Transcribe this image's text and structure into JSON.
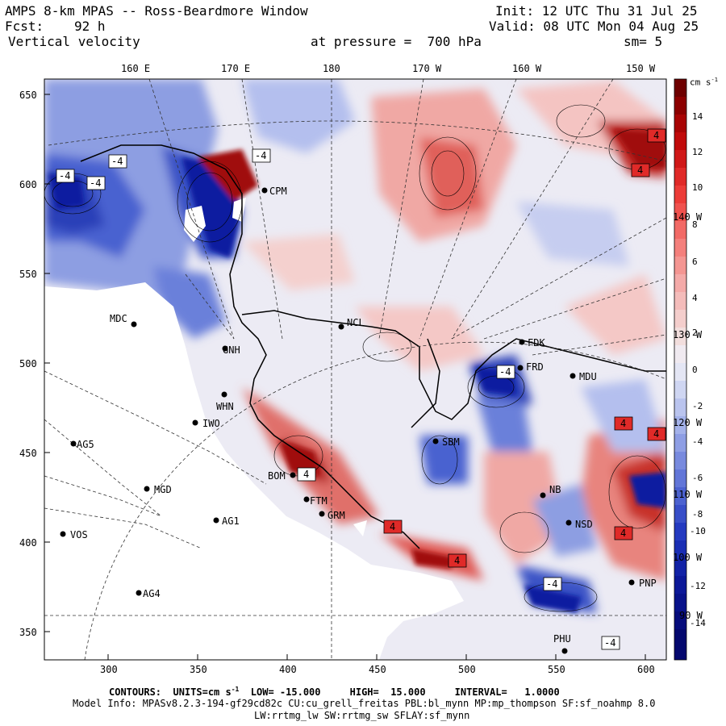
{
  "header": {
    "title": "AMPS 8-km MPAS -- Ross-Beardmore Window",
    "fcst_label": "Fcst:",
    "fcst_value": "92 h",
    "field": "Vertical velocity",
    "init": "Init: 12 UTC Thu 31 Jul 25",
    "valid": "Valid: 08 UTC Mon 04 Aug 25",
    "pressure": "at pressure =  700 hPa",
    "smooth": "sm= 5"
  },
  "top_axis": [
    "160 E",
    "170 E",
    "180",
    "170 W",
    "160 W",
    "150 W"
  ],
  "left_axis": [
    "650",
    "600",
    "550",
    "500",
    "450",
    "400",
    "350"
  ],
  "bottom_axis": [
    "300",
    "350",
    "400",
    "450",
    "500",
    "550",
    "600"
  ],
  "right_lon_labels": [
    "140 W",
    "130 W",
    "120 W",
    "110 W",
    "100 W",
    "90 W"
  ],
  "colorbar": {
    "unit": "cm s",
    "unit_exp": "-1",
    "labels": [
      "14",
      "12",
      "10",
      "8",
      "6",
      "4",
      "2",
      "0",
      "-2",
      "-4",
      "-6",
      "-8",
      "-10",
      "-12",
      "-14"
    ]
  },
  "stations": [
    {
      "name": "MDC"
    },
    {
      "name": "IWO"
    },
    {
      "name": "AG5"
    },
    {
      "name": "MGD"
    },
    {
      "name": "AG1"
    },
    {
      "name": "VOS"
    },
    {
      "name": "AG4"
    },
    {
      "name": "WHN"
    },
    {
      "name": "BOM"
    },
    {
      "name": "GRM"
    },
    {
      "name": "FTM"
    },
    {
      "name": "NCL"
    },
    {
      "name": "SBM"
    },
    {
      "name": "FDK"
    },
    {
      "name": "FRD"
    },
    {
      "name": "MDU"
    },
    {
      "name": "NB"
    },
    {
      "name": "NSD"
    },
    {
      "name": "PNP"
    },
    {
      "name": "PHU"
    },
    {
      "name": "CPM"
    },
    {
      "name": "GNH"
    }
  ],
  "contour_labels": [
    "-4",
    "-4",
    "-4",
    "-4",
    "4",
    "4",
    "4",
    "-4",
    "4",
    "4",
    "-4",
    "4",
    "4",
    "4",
    "-4"
  ],
  "footer": {
    "contours": "CONTOURS:  UNITS=cm s",
    "contours_exp": "-1",
    "contours_rest": "  LOW= -15.000     HIGH=  15.000     INTERVAL=   1.0000",
    "model_info": "Model Info: MPASv8.2.3-194-gf29cd82c CU:cu_grell_freitas PBL:bl_mynn MP:mp_thompson SF:sf_noahmp 8.0",
    "physics": "LW:rrtmg_lw SW:rrtmg_sw SFLAY:sf_mynn"
  },
  "colors": {
    "strong_blue": "#0a1ea0",
    "mid_blue": "#4a62d0",
    "light_blue": "#b4bfee",
    "pale": "#ecebf4",
    "light_red": "#f2b2ae",
    "mid_red": "#e0504a",
    "strong_red": "#a00a0a"
  }
}
